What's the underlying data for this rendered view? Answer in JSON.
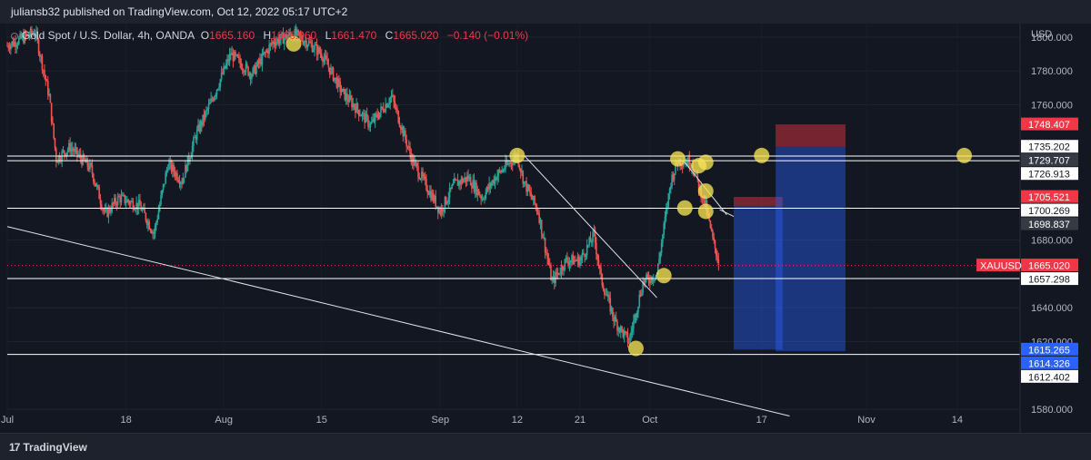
{
  "header": {
    "publisher_line": "juliansb32 published on TradingView.com, Oct 12, 2022 05:17 UTC+2"
  },
  "legend": {
    "symbol_line": "Gold Spot / U.S. Dollar, 4h, OANDA",
    "o_label": "O",
    "o_value": "1665.160",
    "h_label": "H",
    "h_value": "1666.960",
    "l_label": "L",
    "l_value": "1661.470",
    "c_label": "C",
    "c_value": "1665.020",
    "change": "−0.140 (−0.01%)"
  },
  "footer": {
    "logo_text": "TradingView",
    "logo_mark": "17"
  },
  "chart_data": {
    "type": "candlestick",
    "symbol": "XAUUSD",
    "currency": "USD",
    "interval": "4h",
    "ylim": [
      1572,
      1808
    ],
    "y_ticks": [
      {
        "value": 1800,
        "label": "1800.000"
      },
      {
        "value": 1780,
        "label": "1780.000"
      },
      {
        "value": 1760,
        "label": "1760.000"
      },
      {
        "value": 1680,
        "label": "1680.000"
      },
      {
        "value": 1640,
        "label": "1640.000"
      },
      {
        "value": 1620,
        "label": "1620.000"
      },
      {
        "value": 1580,
        "label": "1580.000"
      }
    ],
    "x_ticks": [
      {
        "day": 0,
        "label": "Jul"
      },
      {
        "day": 17,
        "label": "18"
      },
      {
        "day": 31,
        "label": "Aug"
      },
      {
        "day": 45,
        "label": "15"
      },
      {
        "day": 62,
        "label": "Sep"
      },
      {
        "day": 73,
        "label": "12"
      },
      {
        "day": 82,
        "label": "21"
      },
      {
        "day": 92,
        "label": "Oct"
      },
      {
        "day": 108,
        "label": "17"
      },
      {
        "day": 123,
        "label": "Nov"
      },
      {
        "day": 136,
        "label": "14"
      }
    ],
    "x_day_range": [
      0,
      145
    ],
    "price_path": [
      [
        0,
        1795
      ],
      [
        4,
        1803
      ],
      [
        6,
        1765
      ],
      [
        7,
        1728
      ],
      [
        9,
        1735
      ],
      [
        12,
        1722
      ],
      [
        14,
        1695
      ],
      [
        16,
        1705
      ],
      [
        19,
        1700
      ],
      [
        21,
        1684
      ],
      [
        23,
        1725
      ],
      [
        25,
        1715
      ],
      [
        27,
        1742
      ],
      [
        29,
        1760
      ],
      [
        32,
        1790
      ],
      [
        35,
        1778
      ],
      [
        38,
        1797
      ],
      [
        41,
        1802
      ],
      [
        43,
        1797
      ],
      [
        45,
        1790
      ],
      [
        48,
        1767
      ],
      [
        50,
        1758
      ],
      [
        52,
        1748
      ],
      [
        55,
        1765
      ],
      [
        58,
        1727
      ],
      [
        62,
        1697
      ],
      [
        64,
        1713
      ],
      [
        66,
        1717
      ],
      [
        68,
        1705
      ],
      [
        70,
        1718
      ],
      [
        73,
        1730
      ],
      [
        74,
        1714
      ],
      [
        76,
        1697
      ],
      [
        78,
        1655
      ],
      [
        80,
        1668
      ],
      [
        82,
        1668
      ],
      [
        84,
        1683
      ],
      [
        85,
        1657
      ],
      [
        87,
        1632
      ],
      [
        89,
        1620
      ],
      [
        91,
        1655
      ],
      [
        93,
        1660
      ],
      [
        95,
        1715
      ],
      [
        96,
        1727
      ],
      [
        98,
        1726
      ],
      [
        99,
        1712
      ],
      [
        100,
        1700
      ],
      [
        101,
        1680
      ],
      [
        102,
        1665
      ]
    ],
    "horizontal_levels": [
      1729.707,
      1726.913,
      1698.837,
      1657.298,
      1612.402
    ],
    "trend_lines": [
      {
        "x1": 0,
        "y1": 1688,
        "x2": 112,
        "y2": 1576
      },
      {
        "x1": 74,
        "y1": 1730,
        "x2": 93,
        "y2": 1646
      },
      {
        "x1": 97,
        "y1": 1726,
        "x2": 103,
        "y2": 1695
      },
      {
        "x1": 102,
        "y1": 1698,
        "x2": 104,
        "y2": 1694
      }
    ],
    "positions": [
      {
        "x1": 104,
        "x2": 111,
        "entry": 1700.269,
        "stop": 1705.521,
        "target": 1615.265
      },
      {
        "x1": 110,
        "x2": 120,
        "entry": 1735.202,
        "stop": 1748.407,
        "target": 1614.326
      }
    ],
    "markers": [
      {
        "x": 41,
        "y": 1796
      },
      {
        "x": 73,
        "y": 1730
      },
      {
        "x": 90,
        "y": 1616
      },
      {
        "x": 94,
        "y": 1659
      },
      {
        "x": 96,
        "y": 1728
      },
      {
        "x": 97,
        "y": 1699
      },
      {
        "x": 99,
        "y": 1724
      },
      {
        "x": 100,
        "y": 1726
      },
      {
        "x": 100,
        "y": 1709
      },
      {
        "x": 100,
        "y": 1697
      },
      {
        "x": 108,
        "y": 1730
      },
      {
        "x": 137,
        "y": 1730
      }
    ],
    "price_labels": [
      {
        "text": "1748.407",
        "value": 1748.407,
        "style": "red"
      },
      {
        "text": "1735.202",
        "value": 1735.202,
        "style": "white"
      },
      {
        "text": "1729.707",
        "value": 1729.707,
        "style": "gray"
      },
      {
        "text": "1726.913",
        "value": 1726.913,
        "style": "white"
      },
      {
        "text": "1705.521",
        "value": 1705.521,
        "style": "red"
      },
      {
        "text": "1700.269",
        "value": 1700.269,
        "style": "white"
      },
      {
        "text": "1698.837",
        "value": 1698.837,
        "style": "gray"
      },
      {
        "text": "1665.020",
        "value": 1665.02,
        "style": "red"
      },
      {
        "text": "1657.298",
        "value": 1657.298,
        "style": "white"
      },
      {
        "text": "1615.265",
        "value": 1615.265,
        "style": "blue"
      },
      {
        "text": "1614.326",
        "value": 1614.326,
        "style": "blue"
      },
      {
        "text": "1612.402",
        "value": 1612.402,
        "style": "white"
      }
    ],
    "current_price": {
      "symbol": "XAUUSD",
      "value": 1665.02
    },
    "colors": {
      "up": "#26a69a",
      "down": "#ef5350",
      "marker": "#f7e353",
      "target_zone": "#2962ff",
      "stop_zone": "#f23645",
      "level_line": "#ffffff",
      "last_price_line": "#f23645"
    }
  }
}
